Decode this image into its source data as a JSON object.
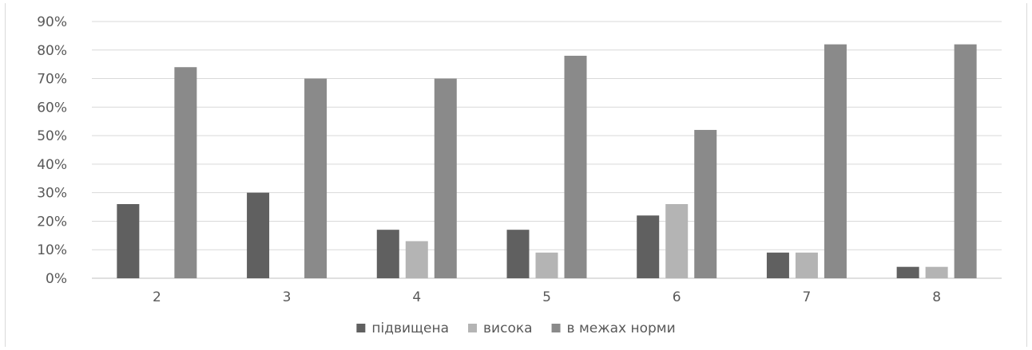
{
  "chart_data": {
    "type": "bar",
    "categories": [
      "2",
      "3",
      "4",
      "5",
      "6",
      "7",
      "8"
    ],
    "series": [
      {
        "name": "підвищена",
        "color": "#606060",
        "values": [
          26,
          30,
          17,
          17,
          22,
          9,
          4
        ]
      },
      {
        "name": "висока",
        "color": "#b4b4b4",
        "values": [
          0,
          0,
          13,
          9,
          26,
          9,
          4
        ]
      },
      {
        "name": "в межах норми",
        "color": "#8a8a8a",
        "values": [
          74,
          70,
          70,
          78,
          52,
          82,
          82
        ]
      }
    ],
    "title": "",
    "xlabel": "",
    "ylabel": "",
    "ylim": [
      0,
      90
    ],
    "yticks": [
      "0%",
      "10%",
      "20%",
      "30%",
      "40%",
      "50%",
      "60%",
      "70%",
      "80%",
      "90%"
    ],
    "grid": true,
    "legend_position": "bottom"
  }
}
